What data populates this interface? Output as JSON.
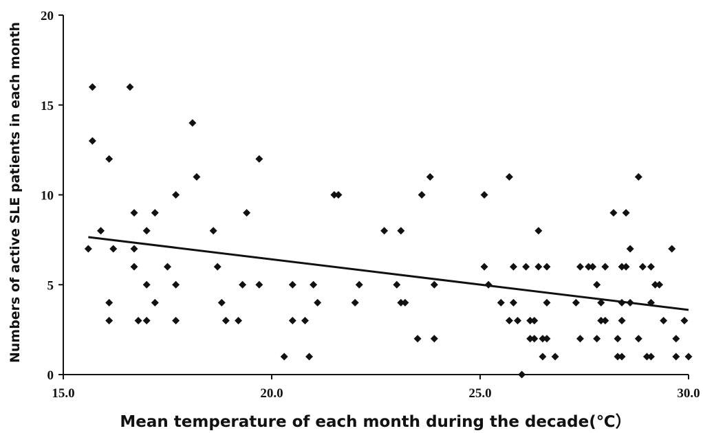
{
  "chart_data": {
    "type": "scatter",
    "title": "",
    "xlabel": "Mean temperature of each month during the decade(℃）",
    "ylabel": "Numbers of active SLE patients in each month",
    "xlim": [
      15.0,
      30.0
    ],
    "ylim": [
      0,
      20
    ],
    "xticks": [
      "15.0",
      "20.0",
      "25.0",
      "30.0"
    ],
    "yticks": [
      "0",
      "5",
      "10",
      "15",
      "20"
    ],
    "grid": false,
    "legend": "none",
    "marker": "diamond",
    "marker_color": "#111111",
    "trendline": {
      "x": [
        15.6,
        30.0
      ],
      "y": [
        7.65,
        3.6
      ]
    },
    "points": [
      [
        15.6,
        7
      ],
      [
        15.7,
        16
      ],
      [
        15.7,
        13
      ],
      [
        15.9,
        8
      ],
      [
        16.1,
        12
      ],
      [
        16.1,
        4
      ],
      [
        16.1,
        3
      ],
      [
        16.2,
        7
      ],
      [
        16.6,
        16
      ],
      [
        16.7,
        9
      ],
      [
        16.7,
        7
      ],
      [
        16.7,
        6
      ],
      [
        16.8,
        3
      ],
      [
        17.0,
        8
      ],
      [
        17.0,
        5
      ],
      [
        17.0,
        3
      ],
      [
        17.2,
        9
      ],
      [
        17.2,
        4
      ],
      [
        17.5,
        6
      ],
      [
        17.7,
        10
      ],
      [
        17.7,
        5
      ],
      [
        17.7,
        3
      ],
      [
        18.1,
        14
      ],
      [
        18.2,
        11
      ],
      [
        18.6,
        8
      ],
      [
        18.7,
        6
      ],
      [
        18.8,
        4
      ],
      [
        18.9,
        3
      ],
      [
        19.2,
        3
      ],
      [
        19.3,
        5
      ],
      [
        19.4,
        9
      ],
      [
        19.7,
        12
      ],
      [
        19.7,
        5
      ],
      [
        20.3,
        1
      ],
      [
        20.5,
        5
      ],
      [
        20.5,
        3
      ],
      [
        20.8,
        3
      ],
      [
        20.9,
        1
      ],
      [
        21.0,
        5
      ],
      [
        21.1,
        4
      ],
      [
        21.5,
        10
      ],
      [
        21.6,
        10
      ],
      [
        22.0,
        4
      ],
      [
        22.1,
        5
      ],
      [
        22.7,
        8
      ],
      [
        23.0,
        5
      ],
      [
        23.1,
        4
      ],
      [
        23.1,
        8
      ],
      [
        23.2,
        4
      ],
      [
        23.5,
        2
      ],
      [
        23.6,
        10
      ],
      [
        23.8,
        11
      ],
      [
        23.9,
        5
      ],
      [
        23.9,
        2
      ],
      [
        25.1,
        10
      ],
      [
        25.1,
        6
      ],
      [
        25.2,
        5
      ],
      [
        25.5,
        4
      ],
      [
        25.7,
        11
      ],
      [
        25.7,
        3
      ],
      [
        25.8,
        6
      ],
      [
        25.8,
        4
      ],
      [
        25.9,
        3
      ],
      [
        26.0,
        0
      ],
      [
        26.1,
        6
      ],
      [
        26.2,
        3
      ],
      [
        26.2,
        2
      ],
      [
        26.3,
        3
      ],
      [
        26.3,
        2
      ],
      [
        26.4,
        8
      ],
      [
        26.4,
        6
      ],
      [
        26.5,
        2
      ],
      [
        26.5,
        1
      ],
      [
        26.6,
        6
      ],
      [
        26.6,
        4
      ],
      [
        26.6,
        2
      ],
      [
        26.8,
        1
      ],
      [
        27.3,
        4
      ],
      [
        27.4,
        6
      ],
      [
        27.4,
        2
      ],
      [
        27.6,
        6
      ],
      [
        27.7,
        6
      ],
      [
        27.8,
        5
      ],
      [
        27.8,
        2
      ],
      [
        27.9,
        4
      ],
      [
        27.9,
        3
      ],
      [
        28.0,
        6
      ],
      [
        28.0,
        3
      ],
      [
        28.2,
        9
      ],
      [
        28.3,
        2
      ],
      [
        28.3,
        1
      ],
      [
        28.4,
        6
      ],
      [
        28.4,
        4
      ],
      [
        28.4,
        3
      ],
      [
        28.4,
        1
      ],
      [
        28.5,
        9
      ],
      [
        28.5,
        6
      ],
      [
        28.6,
        7
      ],
      [
        28.6,
        4
      ],
      [
        28.8,
        11
      ],
      [
        28.8,
        2
      ],
      [
        28.9,
        6
      ],
      [
        29.0,
        1
      ],
      [
        29.1,
        6
      ],
      [
        29.1,
        4
      ],
      [
        29.1,
        1
      ],
      [
        29.2,
        5
      ],
      [
        29.3,
        5
      ],
      [
        29.4,
        3
      ],
      [
        29.6,
        7
      ],
      [
        29.7,
        2
      ],
      [
        29.7,
        1
      ],
      [
        29.9,
        3
      ],
      [
        30.0,
        1
      ]
    ]
  }
}
